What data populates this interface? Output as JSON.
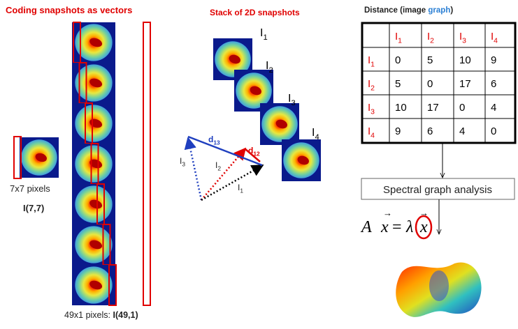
{
  "left": {
    "title": "Coding snapshots as vectors",
    "small_caption": "7x7 pixels",
    "small_label": "I(7,7)",
    "column_caption": "49x1 pixels: ",
    "column_label": "I(49,1)"
  },
  "middle": {
    "title": "Stack of 2D snapshots",
    "snapshots": [
      {
        "base": "I",
        "sub": "1"
      },
      {
        "base": "I",
        "sub": "2"
      },
      {
        "base": "I",
        "sub": "3"
      },
      {
        "base": "I",
        "sub": "4"
      }
    ],
    "vectors": [
      {
        "base": "d",
        "sub": "13"
      },
      {
        "base": "d",
        "sub": "12"
      },
      {
        "base": "I",
        "sub": "1"
      },
      {
        "base": "I",
        "sub": "2"
      },
      {
        "base": "I",
        "sub": "3"
      }
    ]
  },
  "right": {
    "title": {
      "prefix": "Distance (image ",
      "highlight": "graph",
      "suffix": ")"
    },
    "table": {
      "header": [
        {
          "base": "I",
          "sub": "1"
        },
        {
          "base": "I",
          "sub": "2"
        },
        {
          "base": "I",
          "sub": "3"
        },
        {
          "base": "I",
          "sub": "4"
        }
      ],
      "rows": [
        {
          "label": {
            "base": "I",
            "sub": "1"
          },
          "cells": [
            0,
            5,
            10,
            9
          ]
        },
        {
          "label": {
            "base": "I",
            "sub": "2"
          },
          "cells": [
            5,
            0,
            17,
            6
          ]
        },
        {
          "label": {
            "base": "I",
            "sub": "3"
          },
          "cells": [
            10,
            17,
            0,
            4
          ]
        },
        {
          "label": {
            "base": "I",
            "sub": "4"
          },
          "cells": [
            9,
            6,
            4,
            0
          ]
        }
      ]
    },
    "analysis": "Spectral graph analysis",
    "equation": {
      "matrix": "A",
      "vector": "x",
      "equals": "=",
      "eigenvalue": "λ",
      "rhs_vector": "x"
    }
  }
}
